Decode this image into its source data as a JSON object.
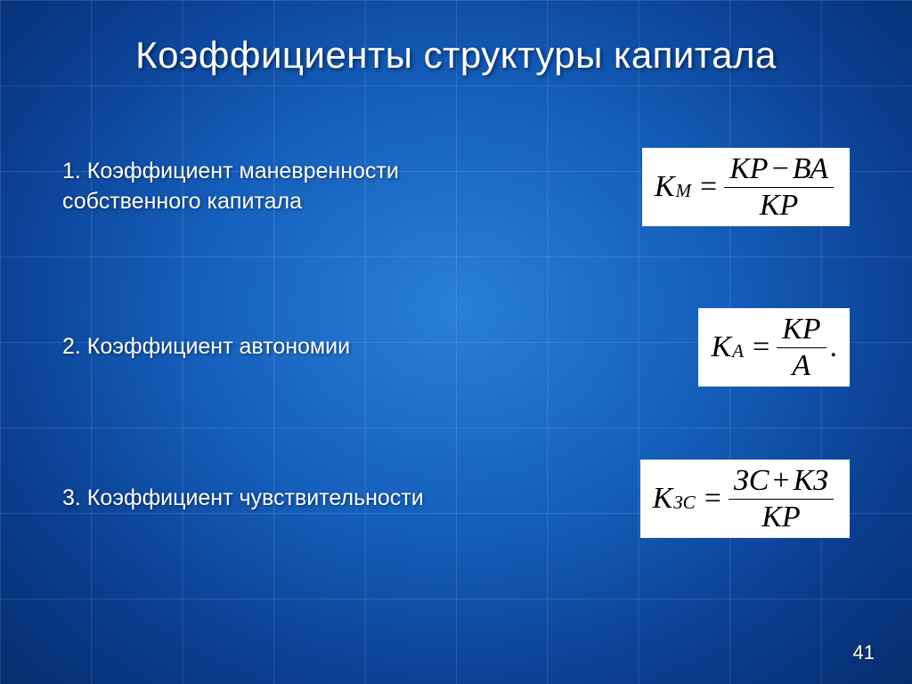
{
  "title": "Коэффициенты структуры капитала",
  "items": [
    {
      "label": "1.  Коэффициент маневренности собственного капитала"
    },
    {
      "label": "2. Коэффициент автономии"
    },
    {
      "label": "3. Коэффициент чувствительности"
    }
  ],
  "formulas": [
    {
      "lhs_main": "К",
      "lhs_sub": "М",
      "num_parts": [
        "КР",
        "−",
        "ВА"
      ],
      "den": "КР",
      "trailing": ""
    },
    {
      "lhs_main": "К",
      "lhs_sub": "А",
      "num_parts": [
        "КР"
      ],
      "den": "А",
      "trailing": "."
    },
    {
      "lhs_main": "К",
      "lhs_sub": "ЗС",
      "num_parts": [
        "ЗС",
        "+",
        "КЗ"
      ],
      "den": "КР",
      "trailing": ""
    }
  ],
  "style": {
    "title_fontsize": 42,
    "label_fontsize": 25,
    "formula_fontsize": 34,
    "text_color": "#ffffff",
    "formula_bg": "#ffffff",
    "formula_fg": "#000000",
    "bg_gradient_center": "#2a7fd4",
    "bg_gradient_edge": "#062d6e",
    "grid_color": "rgba(255,255,255,0.12)"
  },
  "page_number": "41"
}
